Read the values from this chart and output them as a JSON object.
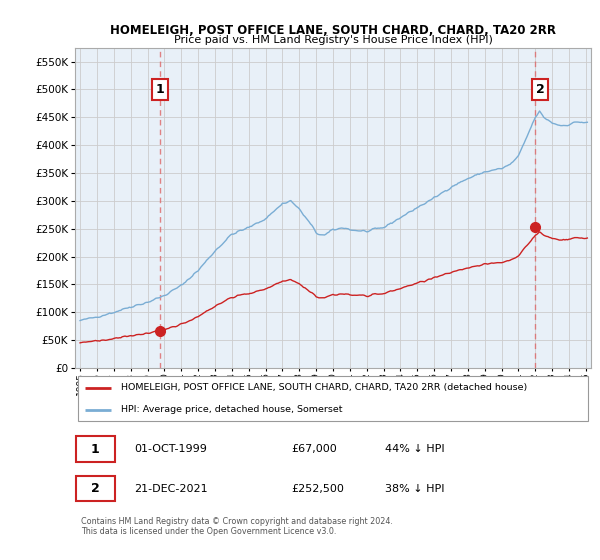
{
  "title": "HOMELEIGH, POST OFFICE LANE, SOUTH CHARD, CHARD, TA20 2RR",
  "subtitle": "Price paid vs. HM Land Registry's House Price Index (HPI)",
  "legend_line1": "HOMELEIGH, POST OFFICE LANE, SOUTH CHARD, CHARD, TA20 2RR (detached house)",
  "legend_line2": "HPI: Average price, detached house, Somerset",
  "transaction1_date": "01-OCT-1999",
  "transaction1_price": "£67,000",
  "transaction1_hpi": "44% ↓ HPI",
  "transaction1_year": 1999.75,
  "transaction1_value": 67000,
  "transaction2_date": "21-DEC-2021",
  "transaction2_price": "£252,500",
  "transaction2_hpi": "38% ↓ HPI",
  "transaction2_year": 2021.97,
  "transaction2_value": 252500,
  "copyright_text": "Contains HM Land Registry data © Crown copyright and database right 2024.\nThis data is licensed under the Open Government Licence v3.0.",
  "hpi_color": "#7aadd4",
  "hpi_fill_color": "#ddeeff",
  "price_color": "#cc2222",
  "marker_color_red": "#cc2222",
  "background_color": "#ffffff",
  "plot_bg_color": "#e8f0f8",
  "grid_color": "#cccccc",
  "ylim": [
    0,
    575000
  ],
  "yticks": [
    0,
    50000,
    100000,
    150000,
    200000,
    250000,
    300000,
    350000,
    400000,
    450000,
    500000,
    550000
  ],
  "xlim_start": 1994.7,
  "xlim_end": 2025.3,
  "xtick_years": [
    1995,
    1996,
    1997,
    1998,
    1999,
    2000,
    2001,
    2002,
    2003,
    2004,
    2005,
    2006,
    2007,
    2008,
    2009,
    2010,
    2011,
    2012,
    2013,
    2014,
    2015,
    2016,
    2017,
    2018,
    2019,
    2020,
    2021,
    2022,
    2023,
    2024,
    2025
  ]
}
